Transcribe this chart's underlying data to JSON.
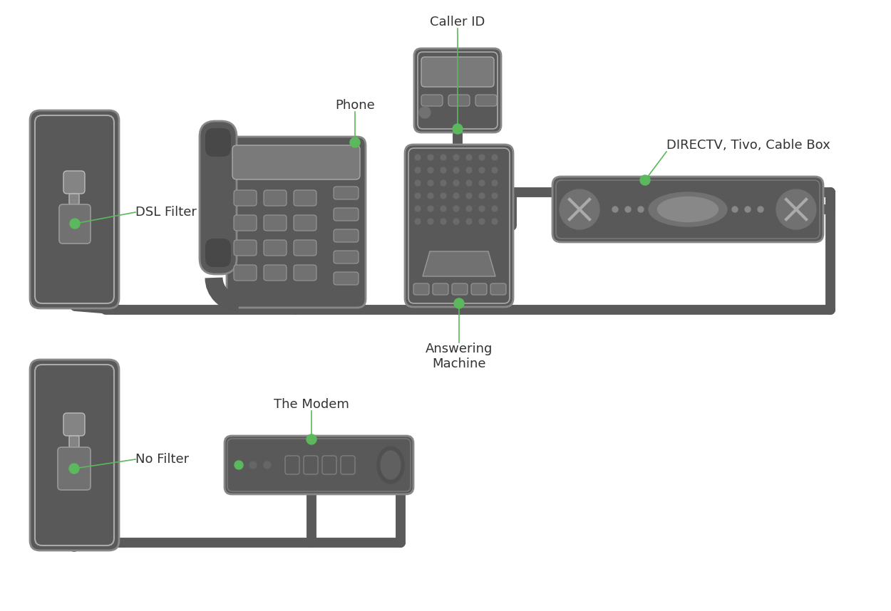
{
  "bg_color": "#ffffff",
  "device_color": "#595959",
  "wire_color": "#5a5a5a",
  "green_dot": "#5cb85c",
  "label_line_color": "#5cb85c",
  "label_color": "#333333",
  "font_size_label": 13,
  "labels": {
    "dsl_filter": "DSL Filter",
    "phone": "Phone",
    "caller_id": "Caller ID",
    "answering_machine": "Answering\nMachine",
    "directv": "DIRECTV, Tivo, Cable Box",
    "no_filter": "No Filter",
    "modem": "The Modem"
  }
}
